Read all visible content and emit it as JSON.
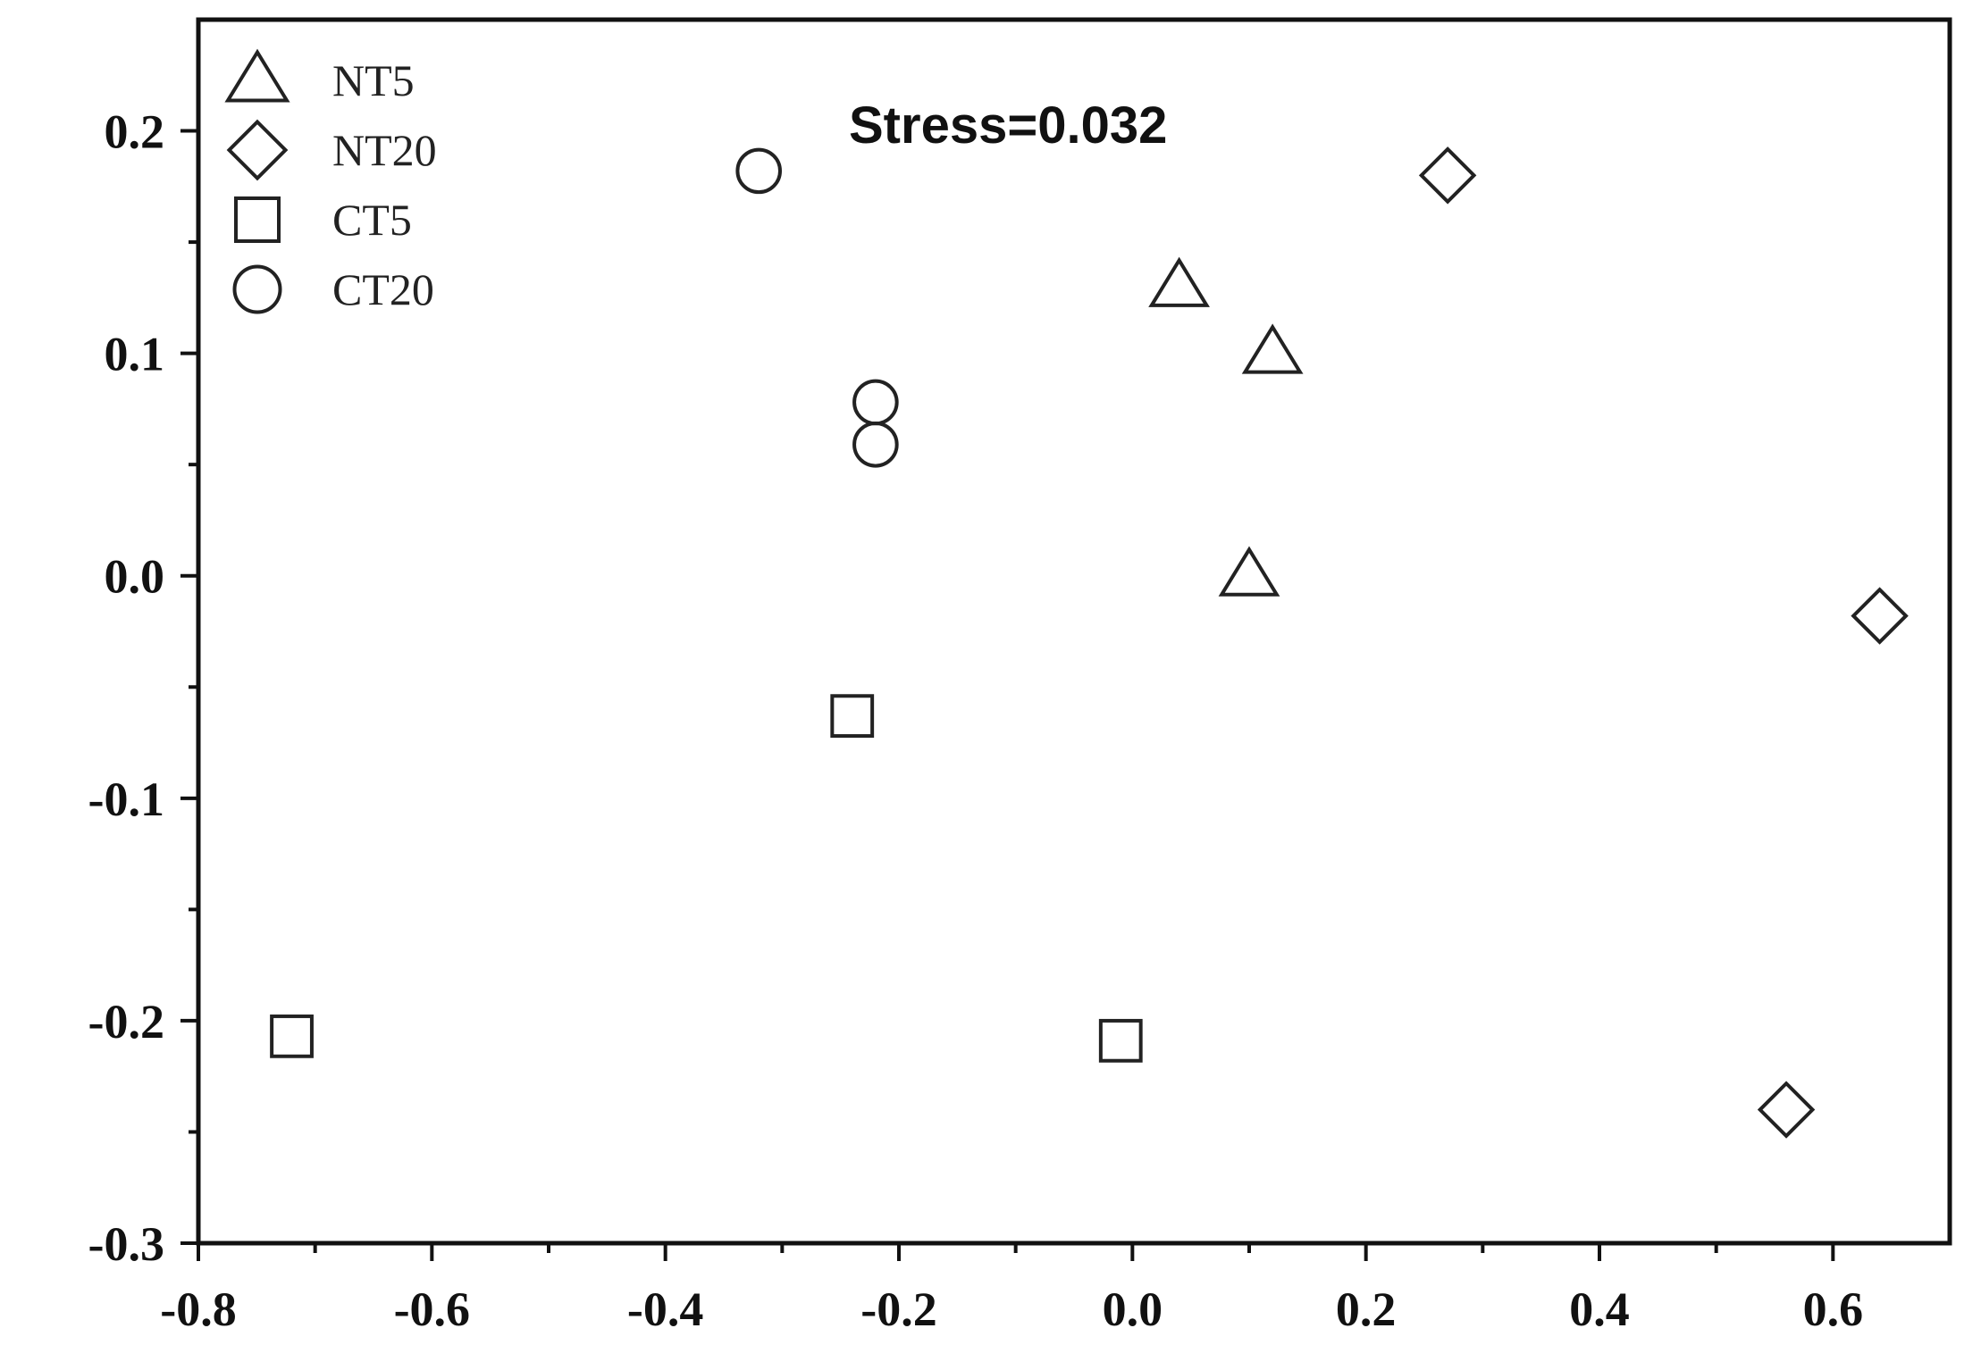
{
  "chart_data": {
    "type": "scatter",
    "title": "",
    "xlabel": "",
    "ylabel": "",
    "annotation": "Stress=0.032",
    "xlim": [
      -0.8,
      0.7
    ],
    "ylim": [
      -0.3,
      0.25
    ],
    "x_ticks": [
      -0.8,
      -0.6,
      -0.4,
      -0.2,
      0.0,
      0.2,
      0.4,
      0.6
    ],
    "x_tick_labels": [
      "-0.8",
      "-0.6",
      "-0.4",
      "-0.2",
      "0.0",
      "0.2",
      "0.4",
      "0.6"
    ],
    "y_ticks": [
      -0.3,
      -0.2,
      -0.1,
      0.0,
      0.1,
      0.2
    ],
    "y_tick_labels": [
      "-0.3",
      "-0.2",
      "-0.1",
      "0.0",
      "0.1",
      "0.2"
    ],
    "grid": false,
    "legend_position": "top-left",
    "series": [
      {
        "name": "NT5",
        "marker": "triangle",
        "points": [
          {
            "x": 0.04,
            "y": 0.13
          },
          {
            "x": 0.12,
            "y": 0.1
          },
          {
            "x": 0.1,
            "y": 0.0
          }
        ]
      },
      {
        "name": "NT20",
        "marker": "diamond",
        "points": [
          {
            "x": 0.27,
            "y": 0.18
          },
          {
            "x": 0.64,
            "y": -0.018
          },
          {
            "x": 0.56,
            "y": -0.24
          }
        ]
      },
      {
        "name": "CT5",
        "marker": "square",
        "points": [
          {
            "x": -0.24,
            "y": -0.063
          },
          {
            "x": -0.72,
            "y": -0.207
          },
          {
            "x": -0.01,
            "y": -0.209
          }
        ]
      },
      {
        "name": "CT20",
        "marker": "circle",
        "points": [
          {
            "x": -0.32,
            "y": 0.182
          },
          {
            "x": -0.22,
            "y": 0.078
          },
          {
            "x": -0.22,
            "y": 0.059
          }
        ]
      }
    ]
  }
}
